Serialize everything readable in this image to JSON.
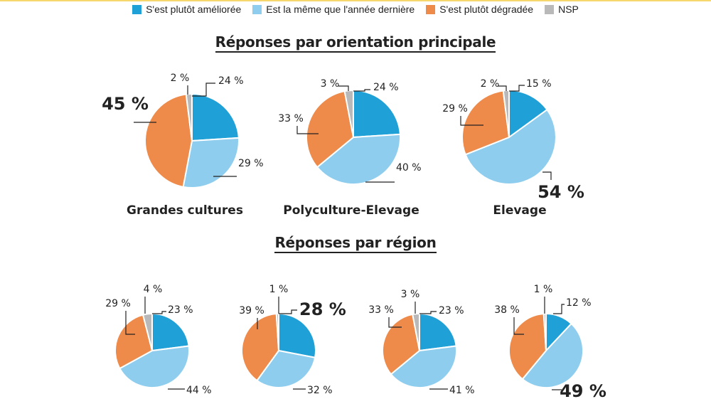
{
  "legend": [
    {
      "label": "S'est plutôt améliorée",
      "color": "#1fa0d6"
    },
    {
      "label": "Est la même que l'année dernière",
      "color": "#8fcdee"
    },
    {
      "label": "S'est plutôt dégradée",
      "color": "#ee8a4a"
    },
    {
      "label": "NSP",
      "color": "#b9b9b9"
    }
  ],
  "titles": {
    "orientation": "Réponses par orientation principale",
    "region": "Réponses par région"
  },
  "chart_data": [
    {
      "type": "pie",
      "group": "Réponses par orientation principale",
      "title": "Grandes cultures",
      "categories": [
        "S'est plutôt améliorée",
        "Est la même que l'année dernière",
        "S'est plutôt dégradée",
        "NSP"
      ],
      "values": [
        24,
        29,
        45,
        2
      ],
      "labels": [
        "24 %",
        "29 %",
        "45 %",
        "2 %"
      ]
    },
    {
      "type": "pie",
      "group": "Réponses par orientation principale",
      "title": "Polyculture-Elevage",
      "categories": [
        "S'est plutôt améliorée",
        "Est la même que l'année dernière",
        "S'est plutôt dégradée",
        "NSP"
      ],
      "values": [
        24,
        40,
        33,
        3
      ],
      "labels": [
        "24 %",
        "40 %",
        "33 %",
        "3 %"
      ]
    },
    {
      "type": "pie",
      "group": "Réponses par orientation principale",
      "title": "Elevage",
      "categories": [
        "S'est plutôt améliorée",
        "Est la même que l'année dernière",
        "S'est plutôt dégradée",
        "NSP"
      ],
      "values": [
        15,
        54,
        29,
        2
      ],
      "labels": [
        "15 %",
        "54 %",
        "29 %",
        "2 %"
      ]
    },
    {
      "type": "pie",
      "group": "Réponses par région",
      "title": "",
      "categories": [
        "S'est plutôt améliorée",
        "Est la même que l'année dernière",
        "S'est plutôt dégradée",
        "NSP"
      ],
      "values": [
        23,
        44,
        29,
        4
      ],
      "labels": [
        "23 %",
        "44 %",
        "29 %",
        "4 %"
      ]
    },
    {
      "type": "pie",
      "group": "Réponses par région",
      "title": "",
      "categories": [
        "S'est plutôt améliorée",
        "Est la même que l'année dernière",
        "S'est plutôt dégradée",
        "NSP"
      ],
      "values": [
        28,
        32,
        39,
        1
      ],
      "labels": [
        "28 %",
        "32 %",
        "39 %",
        "1 %"
      ]
    },
    {
      "type": "pie",
      "group": "Réponses par région",
      "title": "",
      "categories": [
        "S'est plutôt améliorée",
        "Est la même que l'année dernière",
        "S'est plutôt dégradée",
        "NSP"
      ],
      "values": [
        23,
        41,
        33,
        3
      ],
      "labels": [
        "23 %",
        "41 %",
        "33 %",
        "3 %"
      ]
    },
    {
      "type": "pie",
      "group": "Réponses par région",
      "title": "",
      "categories": [
        "S'est plutôt améliorée",
        "Est la même que l'année dernière",
        "S'est plutôt dégradée",
        "NSP"
      ],
      "values": [
        12,
        49,
        38,
        1
      ],
      "labels": [
        "12 %",
        "49 %",
        "38 %",
        "1 %"
      ]
    }
  ]
}
